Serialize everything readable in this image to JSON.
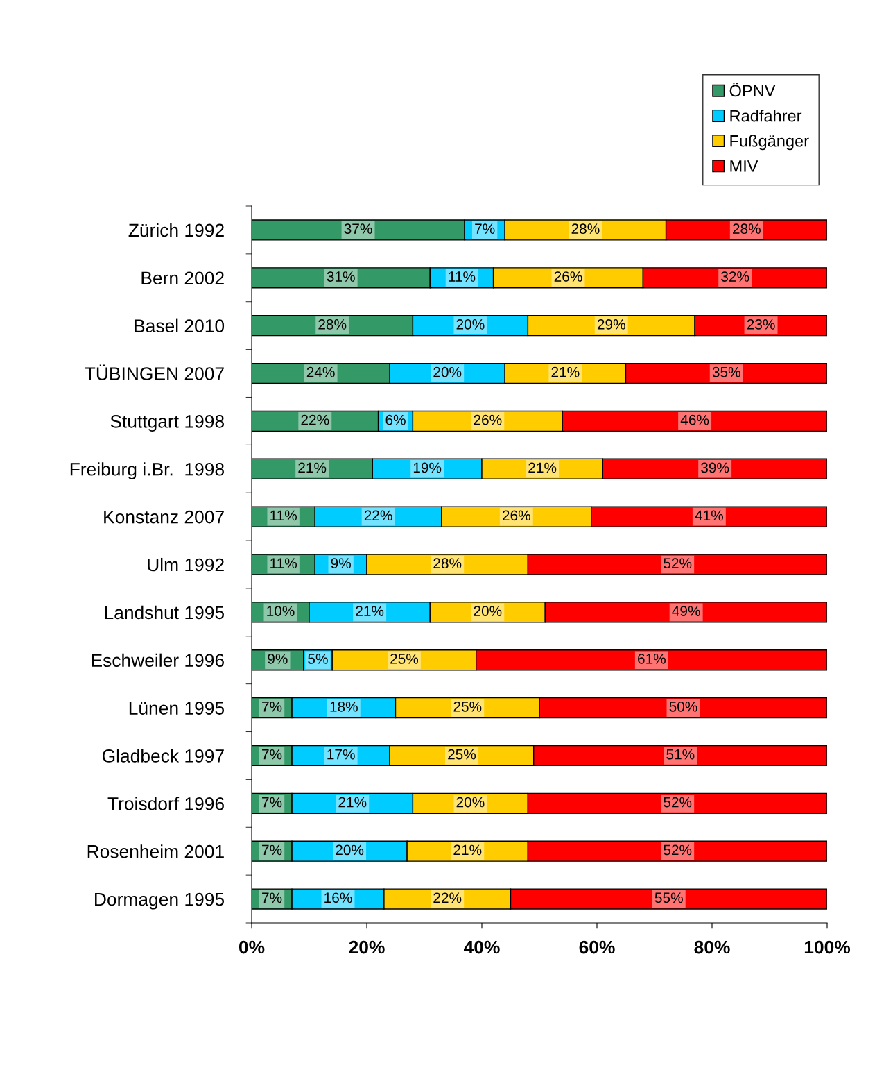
{
  "chart_data": {
    "type": "bar",
    "orientation": "horizontal",
    "stacked": true,
    "categories": [
      "Zürich 1992",
      "Bern 2002",
      "Basel 2010",
      "TÜBINGEN 2007",
      "Stuttgart 1998",
      "Freiburg i.Br.  1998",
      "Konstanz 2007",
      "Ulm 1992",
      "Landshut 1995",
      "Eschweiler 1996",
      "Lünen 1995",
      "Gladbeck 1997",
      "Troisdorf 1996",
      "Rosenheim 2001",
      "Dormagen 1995"
    ],
    "series": [
      {
        "name": "ÖPNV",
        "color": "#339966",
        "values": [
          37,
          31,
          28,
          24,
          22,
          21,
          11,
          11,
          10,
          9,
          7,
          7,
          7,
          7,
          7
        ],
        "value_labels": [
          "37%",
          "31%",
          "28%",
          "24%",
          "22%",
          "21%",
          "11%",
          "11%",
          "10%",
          "9%",
          "7%",
          "7%",
          "7%",
          "7%",
          "7%"
        ]
      },
      {
        "name": "Radfahrer",
        "color": "#00ccff",
        "values": [
          7,
          11,
          20,
          20,
          6,
          19,
          22,
          9,
          21,
          5,
          18,
          17,
          21,
          20,
          16
        ],
        "value_labels": [
          "7%",
          "11%",
          "20%",
          "20%",
          "6%",
          "19%",
          "22%",
          "9%",
          "21%",
          "5%",
          "18%",
          "17%",
          "21%",
          "20%",
          "16%"
        ]
      },
      {
        "name": "Fußgänger",
        "color": "#ffcc00",
        "values": [
          28,
          26,
          29,
          21,
          26,
          21,
          26,
          28,
          20,
          25,
          25,
          25,
          20,
          21,
          22
        ],
        "value_labels": [
          "28%",
          "26%",
          "29%",
          "21%",
          "26%",
          "21%",
          "26%",
          "28%",
          "20%",
          "25%",
          "25%",
          "25%",
          "20%",
          "21%",
          "22%"
        ]
      },
      {
        "name": "MIV",
        "color": "#ff0000",
        "values": [
          28,
          32,
          23,
          35,
          46,
          39,
          41,
          52,
          49,
          61,
          50,
          51,
          52,
          52,
          55
        ],
        "value_labels": [
          "28%",
          "32%",
          "23%",
          "35%",
          "46%",
          "39%",
          "41%",
          "52%",
          "49%",
          "61%",
          "50%",
          "51%",
          "52%",
          "52%",
          "55%"
        ]
      }
    ],
    "xlim": [
      0,
      100
    ],
    "xticks": [
      {
        "value": 0,
        "label": "0%"
      },
      {
        "value": 20,
        "label": "20%"
      },
      {
        "value": 40,
        "label": "40%"
      },
      {
        "value": 60,
        "label": "60%"
      },
      {
        "value": 80,
        "label": "80%"
      },
      {
        "value": 100,
        "label": "100%"
      }
    ],
    "grid": false,
    "legend": "top right"
  }
}
